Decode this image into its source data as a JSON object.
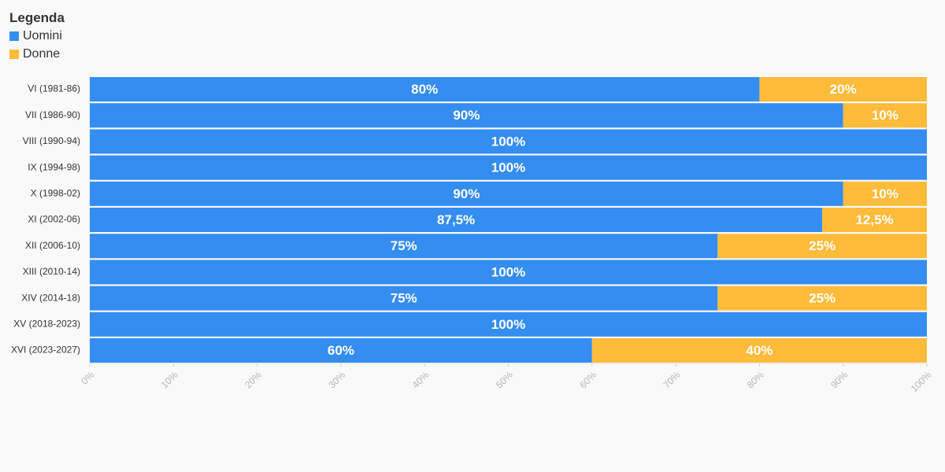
{
  "legend": {
    "title": "Legenda",
    "items": [
      {
        "label": "Uomini",
        "color": "#348df0"
      },
      {
        "label": "Donne",
        "color": "#ffbb3a"
      }
    ]
  },
  "chart_data": {
    "type": "bar",
    "orientation": "horizontal",
    "stacked": true,
    "categories": [
      "VI (1981-86)",
      "VII (1986-90)",
      "VIII (1990-94)",
      "IX (1994-98)",
      "X (1998-02)",
      "XI (2002-06)",
      "XII (2006-10)",
      "XIII (2010-14)",
      "XIV (2014-18)",
      "XV (2018-2023)",
      "XVI (2023-2027)"
    ],
    "series": [
      {
        "name": "Uomini",
        "color": "#348df0",
        "values": [
          80,
          90,
          100,
          100,
          90,
          87.5,
          75,
          100,
          75,
          100,
          60
        ],
        "labels": [
          "80%",
          "90%",
          "100%",
          "100%",
          "90%",
          "87,5%",
          "75%",
          "100%",
          "75%",
          "100%",
          "60%"
        ]
      },
      {
        "name": "Donne",
        "color": "#ffbb3a",
        "values": [
          20,
          10,
          0,
          0,
          10,
          12.5,
          25,
          0,
          25,
          0,
          40
        ],
        "labels": [
          "20%",
          "10%",
          "",
          "",
          "10%",
          "12,5%",
          "25%",
          "",
          "25%",
          "",
          "40%"
        ]
      }
    ],
    "xlim": [
      0,
      100
    ],
    "xticks": [
      "0%",
      "10%",
      "20%",
      "30%",
      "40%",
      "50%",
      "60%",
      "70%",
      "80%",
      "90%",
      "100%"
    ],
    "xlabel": "",
    "ylabel": "",
    "legend_position": "top-left",
    "grid": false
  }
}
